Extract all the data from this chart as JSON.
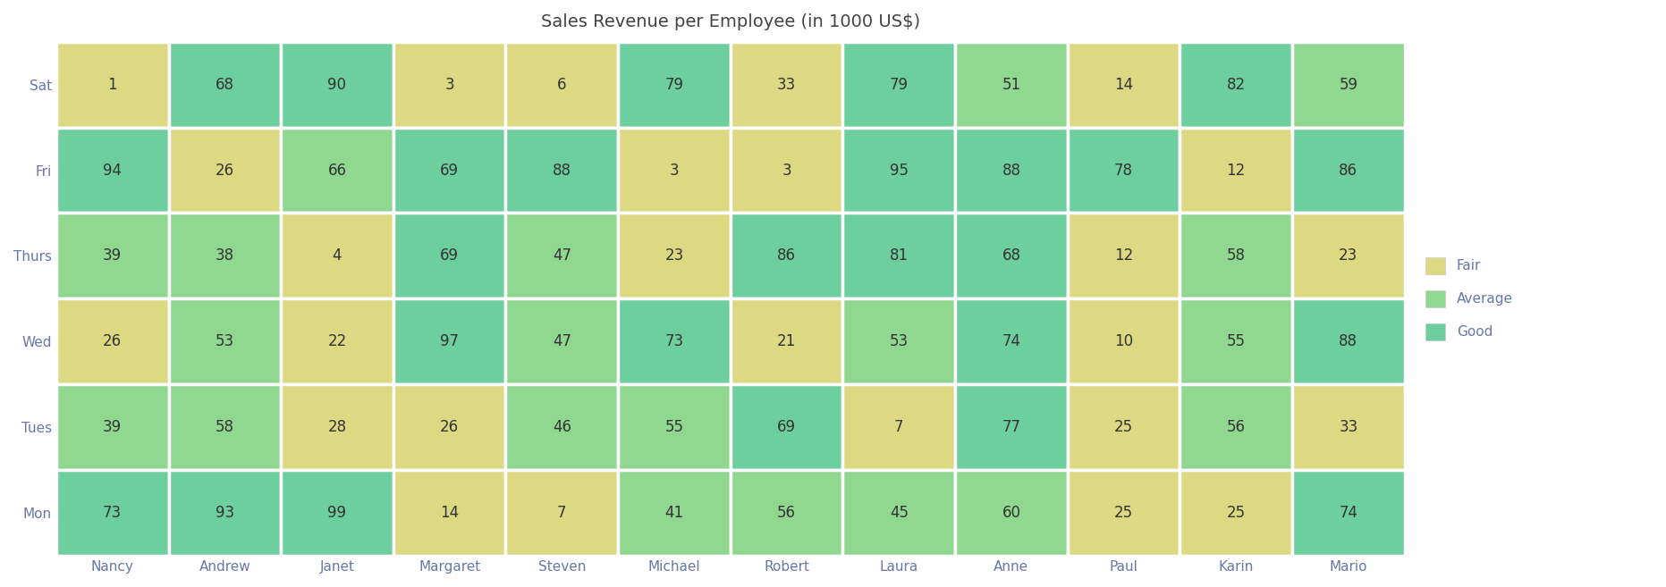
{
  "title": "Sales Revenue per Employee (in 1000 US$)",
  "rows": [
    "Sat",
    "Fri",
    "Thurs",
    "Wed",
    "Tues",
    "Mon"
  ],
  "cols": [
    "Nancy",
    "Andrew",
    "Janet",
    "Margaret",
    "Steven",
    "Michael",
    "Robert",
    "Laura",
    "Anne",
    "Paul",
    "Karin",
    "Mario"
  ],
  "values": [
    [
      1,
      68,
      90,
      3,
      6,
      79,
      33,
      79,
      51,
      14,
      82,
      59
    ],
    [
      94,
      26,
      66,
      69,
      88,
      3,
      3,
      95,
      88,
      78,
      12,
      86
    ],
    [
      39,
      38,
      4,
      69,
      47,
      23,
      86,
      81,
      68,
      12,
      58,
      23
    ],
    [
      26,
      53,
      22,
      97,
      47,
      73,
      21,
      53,
      74,
      10,
      55,
      88
    ],
    [
      39,
      58,
      28,
      26,
      46,
      55,
      69,
      7,
      77,
      25,
      56,
      33
    ],
    [
      73,
      93,
      99,
      14,
      7,
      41,
      56,
      45,
      60,
      25,
      25,
      74
    ]
  ],
  "color_fair": "#ddd882",
  "color_average": "#90d890",
  "color_good": "#6dcf9e",
  "color_border": "#ffffff",
  "title_color": "#444444",
  "text_color": "#333333",
  "legend_labels": [
    "Fair",
    "Average",
    "Good"
  ],
  "background_color": "#ffffff",
  "fair_max": 33,
  "good_min": 67
}
